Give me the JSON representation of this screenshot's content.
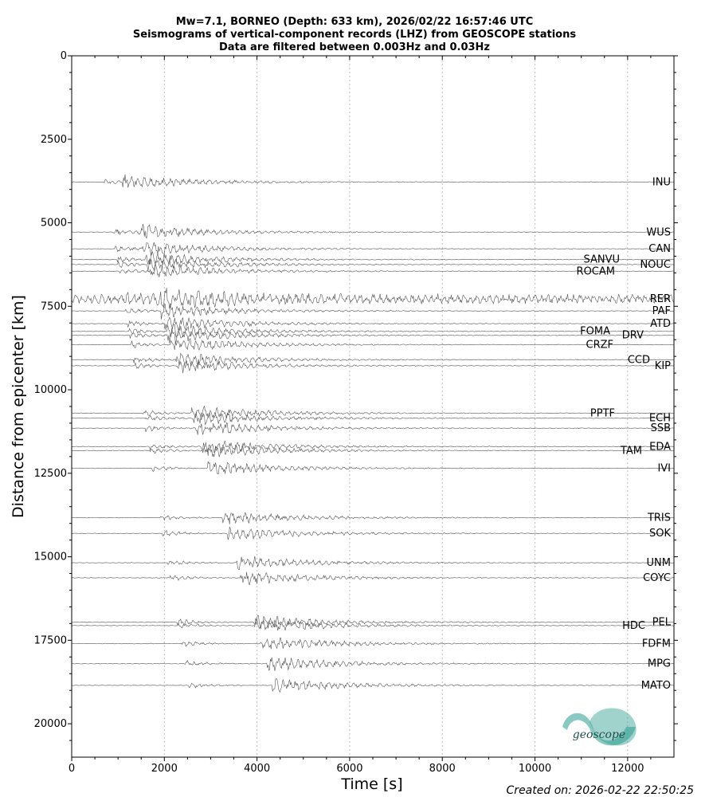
{
  "chart_data": {
    "type": "line",
    "title": [
      "Mw=7.1, BORNEO (Depth: 633 km), 2026/02/22 16:57:46 UTC",
      "Seismograms of vertical-component records (LHZ) from GEOSCOPE stations",
      "Data are filtered between 0.003Hz and 0.03Hz"
    ],
    "xlabel": "Time [s]",
    "ylabel": "Distance from epicenter [km]",
    "xlim": [
      0,
      13000
    ],
    "ylim": [
      21000,
      0
    ],
    "xticks": [
      0,
      2000,
      4000,
      6000,
      8000,
      10000,
      12000
    ],
    "yticks": [
      0,
      2500,
      5000,
      7500,
      10000,
      12500,
      15000,
      17500,
      20000
    ],
    "grid": "vertical-dotted",
    "series": [
      {
        "name": "INU",
        "distance": 3780
      },
      {
        "name": "WUS",
        "distance": 5280
      },
      {
        "name": "CAN",
        "distance": 5780
      },
      {
        "name": "SANVU",
        "distance": 6100
      },
      {
        "name": "NOUC",
        "distance": 6250
      },
      {
        "name": "ROCAM",
        "distance": 6450
      },
      {
        "name": "RER",
        "distance": 7280
      },
      {
        "name": "PAF",
        "distance": 7640
      },
      {
        "name": "ATD",
        "distance": 8020
      },
      {
        "name": "FOMA",
        "distance": 8250
      },
      {
        "name": "DRV",
        "distance": 8370
      },
      {
        "name": "CRZF",
        "distance": 8650
      },
      {
        "name": "CCD",
        "distance": 9100
      },
      {
        "name": "KIP",
        "distance": 9280
      },
      {
        "name": "PPTF",
        "distance": 10700
      },
      {
        "name": "ECH",
        "distance": 10850
      },
      {
        "name": "SSB",
        "distance": 11150
      },
      {
        "name": "EDA",
        "distance": 11700
      },
      {
        "name": "TAM",
        "distance": 11820
      },
      {
        "name": "IVI",
        "distance": 12350
      },
      {
        "name": "TRIS",
        "distance": 13830
      },
      {
        "name": "SOK",
        "distance": 14300
      },
      {
        "name": "UNM",
        "distance": 15180
      },
      {
        "name": "COYC",
        "distance": 15630
      },
      {
        "name": "PEL",
        "distance": 16960
      },
      {
        "name": "HDC",
        "distance": 17060
      },
      {
        "name": "FDFM",
        "distance": 17600
      },
      {
        "name": "MPG",
        "distance": 18200
      },
      {
        "name": "MATO",
        "distance": 18850
      }
    ]
  },
  "footer": {
    "created": "Created on: 2026-02-22 22:50:25"
  },
  "logo": {
    "text": "geoscope"
  },
  "colors": {
    "trace": "#555555",
    "logo": "#2a9d8f"
  }
}
